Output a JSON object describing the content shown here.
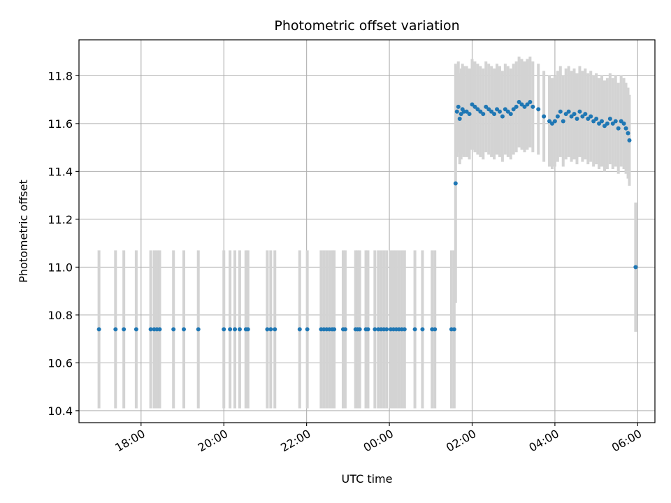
{
  "chart_data": {
    "type": "scatter",
    "title": "Photometric offset variation",
    "xlabel": "UTC time",
    "ylabel": "Photometric offset",
    "x_tick_labels": [
      "18:00",
      "20:00",
      "22:00",
      "00:00",
      "02:00",
      "04:00",
      "06:00"
    ],
    "y_tick_labels": [
      "10.4",
      "10.6",
      "10.8",
      "11.0",
      "11.2",
      "11.4",
      "11.6",
      "11.8"
    ],
    "x_axis": {
      "start": "16:30",
      "end": "06:25",
      "unit": "UTC time (17:00 to 06:00 crossing midnight)"
    },
    "ylim": [
      10.35,
      11.95
    ],
    "grid": true,
    "colors": {
      "point": "#1f77b4",
      "errorbar": "#d3d3d3",
      "grid": "#b0b0b0"
    },
    "series": [
      {
        "points": [
          [
            "16:59",
            10.74,
            0.33
          ],
          [
            "17:23",
            10.74,
            0.33
          ],
          [
            "17:35",
            10.74,
            0.33
          ],
          [
            "17:53",
            10.74,
            0.33
          ],
          [
            "18:14",
            10.74,
            0.33
          ],
          [
            "18:19",
            10.74,
            0.33
          ],
          [
            "18:23",
            10.74,
            0.33
          ],
          [
            "18:27",
            10.74,
            0.33
          ],
          [
            "18:47",
            10.74,
            0.33
          ],
          [
            "19:02",
            10.74,
            0.33
          ],
          [
            "19:23",
            10.74,
            0.33
          ],
          [
            "20:00",
            10.74,
            0.33
          ],
          [
            "20:09",
            10.74,
            0.33
          ],
          [
            "20:16",
            10.74,
            0.33
          ],
          [
            "20:23",
            10.74,
            0.33
          ],
          [
            "20:32",
            10.74,
            0.33
          ],
          [
            "20:35",
            10.74,
            0.33
          ],
          [
            "21:03",
            10.74,
            0.33
          ],
          [
            "21:08",
            10.74,
            0.33
          ],
          [
            "21:14",
            10.74,
            0.33
          ],
          [
            "21:50",
            10.74,
            0.33
          ],
          [
            "22:01",
            10.74,
            0.33
          ],
          [
            "22:21",
            10.74,
            0.33
          ],
          [
            "22:25",
            10.74,
            0.33
          ],
          [
            "22:29",
            10.74,
            0.33
          ],
          [
            "22:33",
            10.74,
            0.33
          ],
          [
            "22:37",
            10.74,
            0.33
          ],
          [
            "22:40",
            10.74,
            0.33
          ],
          [
            "22:53",
            10.74,
            0.33
          ],
          [
            "22:56",
            10.74,
            0.33
          ],
          [
            "23:11",
            10.74,
            0.33
          ],
          [
            "23:14",
            10.74,
            0.33
          ],
          [
            "23:17",
            10.74,
            0.33
          ],
          [
            "23:26",
            10.74,
            0.33
          ],
          [
            "23:29",
            10.74,
            0.33
          ],
          [
            "23:39",
            10.74,
            0.33
          ],
          [
            "23:44",
            10.74,
            0.33
          ],
          [
            "23:48",
            10.74,
            0.33
          ],
          [
            "23:52",
            10.74,
            0.33
          ],
          [
            "23:56",
            10.74,
            0.33
          ],
          [
            "00:02",
            10.74,
            0.33
          ],
          [
            "00:06",
            10.74,
            0.33
          ],
          [
            "00:10",
            10.74,
            0.33
          ],
          [
            "00:14",
            10.74,
            0.33
          ],
          [
            "00:18",
            10.74,
            0.33
          ],
          [
            "00:22",
            10.74,
            0.33
          ],
          [
            "00:37",
            10.74,
            0.33
          ],
          [
            "00:48",
            10.74,
            0.33
          ],
          [
            "01:02",
            10.74,
            0.33
          ],
          [
            "01:06",
            10.74,
            0.33
          ],
          [
            "01:30",
            10.74,
            0.33
          ],
          [
            "01:34",
            10.74,
            0.33
          ],
          [
            "01:36",
            11.35,
            0.5
          ],
          [
            "01:38",
            11.65,
            0.19
          ],
          [
            "01:40",
            11.67,
            0.19
          ],
          [
            "01:42",
            11.62,
            0.19
          ],
          [
            "01:44",
            11.64,
            0.19
          ],
          [
            "01:46",
            11.66,
            0.19
          ],
          [
            "01:48",
            11.65,
            0.19
          ],
          [
            "01:52",
            11.65,
            0.19
          ],
          [
            "01:56",
            11.64,
            0.19
          ],
          [
            "02:00",
            11.68,
            0.19
          ],
          [
            "02:04",
            11.67,
            0.19
          ],
          [
            "02:08",
            11.66,
            0.19
          ],
          [
            "02:12",
            11.65,
            0.19
          ],
          [
            "02:16",
            11.64,
            0.19
          ],
          [
            "02:20",
            11.67,
            0.19
          ],
          [
            "02:24",
            11.66,
            0.19
          ],
          [
            "02:28",
            11.65,
            0.19
          ],
          [
            "02:32",
            11.64,
            0.19
          ],
          [
            "02:36",
            11.66,
            0.19
          ],
          [
            "02:40",
            11.65,
            0.19
          ],
          [
            "02:44",
            11.63,
            0.19
          ],
          [
            "02:48",
            11.66,
            0.19
          ],
          [
            "02:52",
            11.65,
            0.19
          ],
          [
            "02:56",
            11.64,
            0.19
          ],
          [
            "03:00",
            11.66,
            0.19
          ],
          [
            "03:04",
            11.67,
            0.19
          ],
          [
            "03:08",
            11.69,
            0.19
          ],
          [
            "03:12",
            11.68,
            0.19
          ],
          [
            "03:16",
            11.67,
            0.19
          ],
          [
            "03:20",
            11.68,
            0.19
          ],
          [
            "03:24",
            11.69,
            0.19
          ],
          [
            "03:28",
            11.67,
            0.19
          ],
          [
            "03:36",
            11.66,
            0.19
          ],
          [
            "03:44",
            11.63,
            0.19
          ],
          [
            "03:52",
            11.61,
            0.19
          ],
          [
            "03:56",
            11.6,
            0.19
          ],
          [
            "04:00",
            11.61,
            0.19
          ],
          [
            "04:04",
            11.63,
            0.19
          ],
          [
            "04:08",
            11.65,
            0.19
          ],
          [
            "04:12",
            11.61,
            0.19
          ],
          [
            "04:16",
            11.64,
            0.19
          ],
          [
            "04:20",
            11.65,
            0.19
          ],
          [
            "04:24",
            11.63,
            0.19
          ],
          [
            "04:28",
            11.64,
            0.19
          ],
          [
            "04:32",
            11.62,
            0.19
          ],
          [
            "04:36",
            11.65,
            0.19
          ],
          [
            "04:40",
            11.63,
            0.19
          ],
          [
            "04:44",
            11.64,
            0.19
          ],
          [
            "04:48",
            11.62,
            0.19
          ],
          [
            "04:52",
            11.63,
            0.19
          ],
          [
            "04:56",
            11.61,
            0.19
          ],
          [
            "05:00",
            11.62,
            0.19
          ],
          [
            "05:04",
            11.6,
            0.19
          ],
          [
            "05:08",
            11.61,
            0.19
          ],
          [
            "05:12",
            11.59,
            0.19
          ],
          [
            "05:16",
            11.6,
            0.19
          ],
          [
            "05:20",
            11.62,
            0.19
          ],
          [
            "05:24",
            11.6,
            0.19
          ],
          [
            "05:28",
            11.61,
            0.19
          ],
          [
            "05:32",
            11.58,
            0.19
          ],
          [
            "05:36",
            11.61,
            0.19
          ],
          [
            "05:40",
            11.6,
            0.19
          ],
          [
            "05:43",
            11.58,
            0.19
          ],
          [
            "05:46",
            11.56,
            0.19
          ],
          [
            "05:48",
            11.53,
            0.19
          ],
          [
            "05:57",
            11.0,
            0.27
          ]
        ]
      }
    ]
  }
}
